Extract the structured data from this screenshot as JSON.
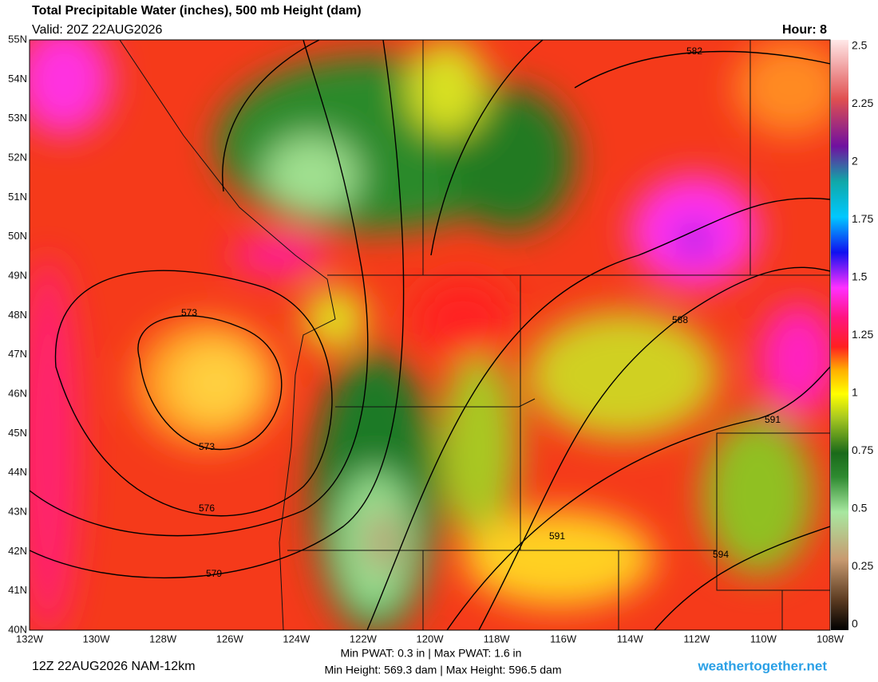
{
  "header": {
    "title": "Total Precipitable Water (inches), 500 mb Height (dam)",
    "valid": "Valid: 20Z 22AUG2026",
    "hour": "Hour: 8"
  },
  "map": {
    "lat_labels": [
      "55N",
      "54N",
      "53N",
      "52N",
      "51N",
      "50N",
      "49N",
      "48N",
      "47N",
      "46N",
      "45N",
      "44N",
      "43N",
      "42N",
      "41N",
      "40N"
    ],
    "lon_labels": [
      "132W",
      "130W",
      "128W",
      "126W",
      "124W",
      "122W",
      "120W",
      "118W",
      "116W",
      "114W",
      "112W",
      "110W",
      "108W"
    ],
    "contour_labels": [
      "573",
      "573",
      "576",
      "579",
      "582",
      "588",
      "591",
      "591",
      "594"
    ]
  },
  "colorbar": {
    "ticks": [
      "2.5",
      "2.25",
      "2",
      "1.75",
      "1.5",
      "1.25",
      "1",
      "0.75",
      "0.5",
      "0.25",
      "0"
    ]
  },
  "footer": {
    "run": "12Z 22AUG2026 NAM-12km",
    "pwat": "Min PWAT:   0.3 in | Max PWAT:   1.6 in",
    "height": "Min Height: 569.3 dam | Max Height: 596.5 dam",
    "site": "weathertogether.net"
  }
}
